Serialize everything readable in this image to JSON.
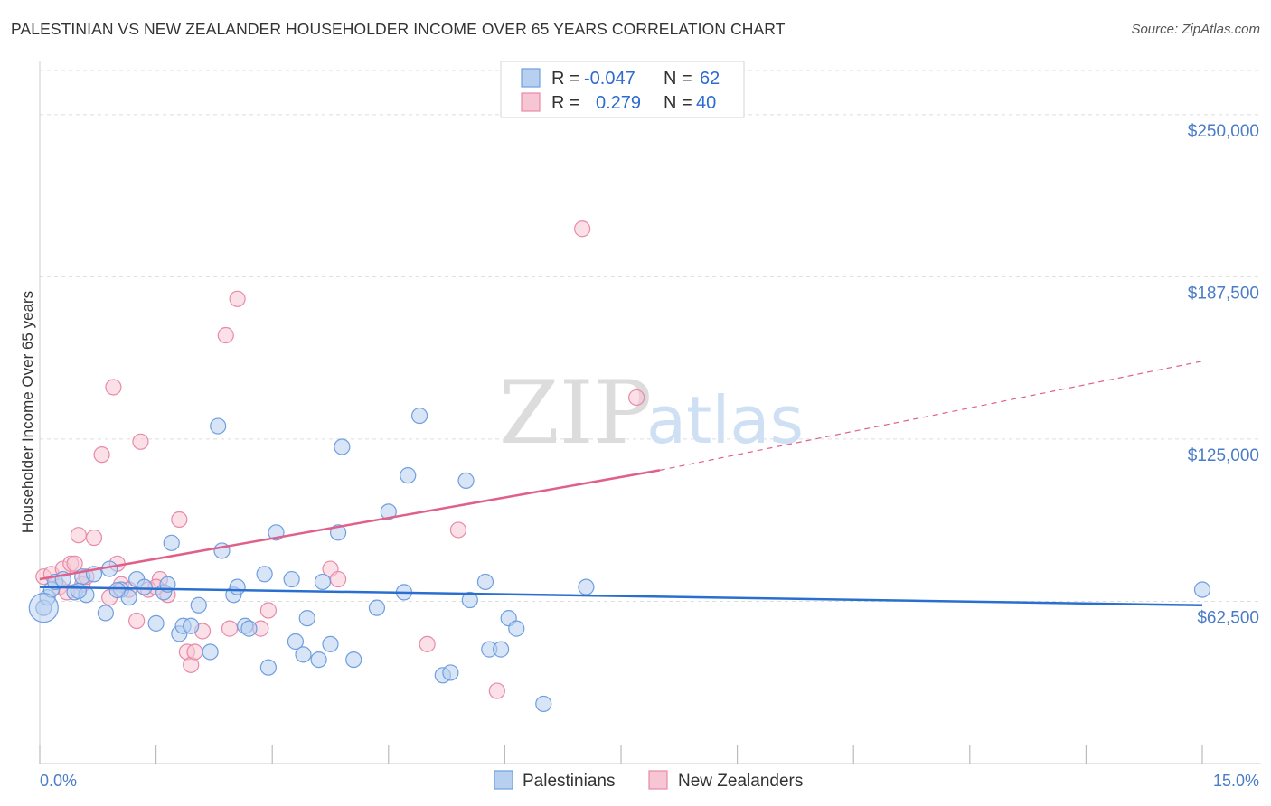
{
  "title": "PALESTINIAN VS NEW ZEALANDER HOUSEHOLDER INCOME OVER 65 YEARS CORRELATION CHART",
  "source": "Source: ZipAtlas.com",
  "watermark": {
    "zip": "ZIP",
    "atlas": "atlas"
  },
  "colors": {
    "blue_fill": "#b8d0f0",
    "blue_stroke": "#6f9ee0",
    "blue_line": "#2a6fd0",
    "pink_fill": "#f7c6d4",
    "pink_stroke": "#e88aa8",
    "pink_line": "#e0608a",
    "axis_text": "#4a7cc7",
    "grid": "#dddddd"
  },
  "legend": {
    "rows": [
      {
        "r_label": "R =",
        "r_value": "-0.047",
        "n_label": "N =",
        "n_value": "62"
      },
      {
        "r_label": "R =",
        "r_value": "0.279",
        "n_label": "N =",
        "n_value": "40"
      }
    ]
  },
  "chart_data": {
    "type": "scatter",
    "title": "PALESTINIAN VS NEW ZEALANDER HOUSEHOLDER INCOME OVER 65 YEARS CORRELATION CHART",
    "xlabel": "",
    "ylabel": "Householder Income Over 65 years",
    "xlim": [
      0,
      15
    ],
    "ylim": [
      0,
      267000
    ],
    "x_tick_labels": [
      "0.0%",
      "15.0%"
    ],
    "y_ticks": [
      62500,
      125000,
      187500,
      250000
    ],
    "y_tick_labels": [
      "$62,500",
      "$125,000",
      "$187,500",
      "$250,000"
    ],
    "grid": true,
    "legend_position": "top-center",
    "series": [
      {
        "name": "Palestinians",
        "color": "#6f9ee0",
        "trend": {
          "x": [
            0,
            15
          ],
          "y": [
            68000,
            61000
          ],
          "dashed_from": null
        },
        "points": [
          [
            0.05,
            60000
          ],
          [
            0.1,
            64000
          ],
          [
            0.15,
            67000
          ],
          [
            0.2,
            70000
          ],
          [
            0.3,
            71000
          ],
          [
            0.45,
            66000
          ],
          [
            0.55,
            72000
          ],
          [
            0.6,
            65000
          ],
          [
            0.7,
            73000
          ],
          [
            0.85,
            58000
          ],
          [
            0.9,
            75000
          ],
          [
            1.05,
            67000
          ],
          [
            1.15,
            64000
          ],
          [
            1.25,
            71000
          ],
          [
            1.35,
            68000
          ],
          [
            1.5,
            54000
          ],
          [
            1.6,
            66000
          ],
          [
            1.65,
            69000
          ],
          [
            1.7,
            85000
          ],
          [
            1.8,
            50000
          ],
          [
            1.85,
            53000
          ],
          [
            1.95,
            53000
          ],
          [
            2.05,
            61000
          ],
          [
            2.2,
            43000
          ],
          [
            2.3,
            130000
          ],
          [
            2.35,
            82000
          ],
          [
            2.5,
            65000
          ],
          [
            2.55,
            68000
          ],
          [
            2.65,
            53000
          ],
          [
            2.7,
            52000
          ],
          [
            2.9,
            73000
          ],
          [
            2.95,
            37000
          ],
          [
            3.05,
            89000
          ],
          [
            3.25,
            71000
          ],
          [
            3.3,
            47000
          ],
          [
            3.4,
            42000
          ],
          [
            3.45,
            56000
          ],
          [
            3.6,
            40000
          ],
          [
            3.65,
            70000
          ],
          [
            3.75,
            46000
          ],
          [
            3.85,
            89000
          ],
          [
            3.9,
            122000
          ],
          [
            4.05,
            40000
          ],
          [
            4.35,
            60000
          ],
          [
            4.5,
            97000
          ],
          [
            4.7,
            66000
          ],
          [
            4.75,
            111000
          ],
          [
            4.9,
            134000
          ],
          [
            5.2,
            34000
          ],
          [
            5.3,
            35000
          ],
          [
            5.5,
            109000
          ],
          [
            5.55,
            63000
          ],
          [
            5.75,
            70000
          ],
          [
            5.8,
            44000
          ],
          [
            5.95,
            44000
          ],
          [
            6.05,
            56000
          ],
          [
            6.15,
            52000
          ],
          [
            6.5,
            23000
          ],
          [
            7.05,
            68000
          ],
          [
            15.0,
            67000
          ],
          [
            0.5,
            66500
          ],
          [
            1.0,
            66800
          ]
        ]
      },
      {
        "name": "New Zealanders",
        "color": "#e88aa8",
        "trend": {
          "x": [
            0,
            8.0
          ],
          "y": [
            71000,
            113000
          ],
          "dashed_to": [
            15,
            155000
          ]
        },
        "points": [
          [
            0.05,
            72000
          ],
          [
            0.15,
            73000
          ],
          [
            0.25,
            68000
          ],
          [
            0.3,
            75000
          ],
          [
            0.4,
            77000
          ],
          [
            0.45,
            77000
          ],
          [
            0.5,
            88000
          ],
          [
            0.55,
            69000
          ],
          [
            0.6,
            72000
          ],
          [
            0.7,
            87000
          ],
          [
            0.8,
            119000
          ],
          [
            0.9,
            64000
          ],
          [
            0.95,
            145000
          ],
          [
            1.0,
            77000
          ],
          [
            1.05,
            69000
          ],
          [
            1.15,
            67000
          ],
          [
            1.25,
            55000
          ],
          [
            1.3,
            124000
          ],
          [
            1.4,
            67000
          ],
          [
            1.55,
            71000
          ],
          [
            1.65,
            65000
          ],
          [
            1.8,
            94000
          ],
          [
            1.9,
            43000
          ],
          [
            1.95,
            38000
          ],
          [
            2.0,
            43000
          ],
          [
            2.1,
            51000
          ],
          [
            2.4,
            165000
          ],
          [
            2.45,
            52000
          ],
          [
            2.55,
            179000
          ],
          [
            2.85,
            52000
          ],
          [
            2.95,
            59000
          ],
          [
            3.75,
            75000
          ],
          [
            3.85,
            71000
          ],
          [
            5.0,
            46000
          ],
          [
            5.4,
            90000
          ],
          [
            5.9,
            28000
          ],
          [
            7.0,
            206000
          ],
          [
            7.7,
            141000
          ],
          [
            0.35,
            66000
          ],
          [
            1.5,
            68000
          ]
        ]
      }
    ]
  },
  "bottom_legend": [
    {
      "label": "Palestinians"
    },
    {
      "label": "New Zealanders"
    }
  ]
}
